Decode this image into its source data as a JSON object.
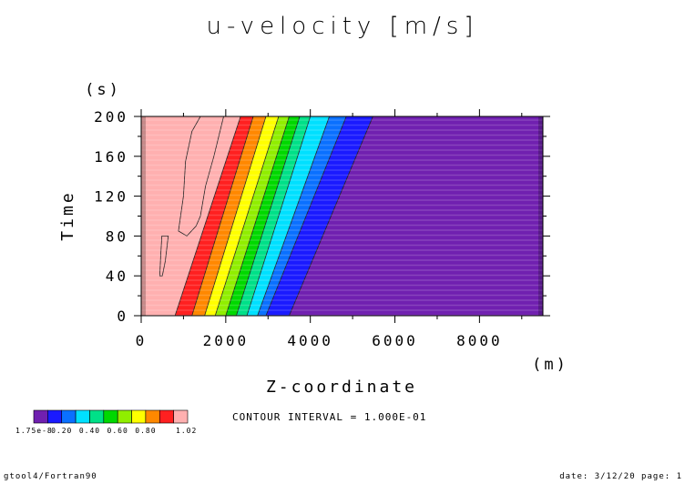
{
  "chart_data": {
    "type": "contour",
    "title": "u-velocity [m/s]",
    "xlabel": "Z-coordinate",
    "xunit": "(m)",
    "ylabel": "Time",
    "yunit": "(s)",
    "xlim": [
      0,
      9500
    ],
    "ylim": [
      0,
      200
    ],
    "xticks": [
      "0",
      "2000",
      "4000",
      "6000",
      "8000"
    ],
    "yticks": [
      "0",
      "40",
      "80",
      "120",
      "160",
      "200"
    ],
    "contour_interval_text": "CONTOUR INTERVAL = 1.000E-01",
    "contour_levels": [
      0.1,
      0.2,
      0.3,
      0.4,
      0.5,
      0.6,
      0.7,
      0.8,
      0.9,
      1.0
    ],
    "contour_lines": [
      {
        "level": 0.1,
        "z_at_t0": 3500,
        "z_at_t200": 5480
      },
      {
        "level": 0.2,
        "z_at_t0": 2950,
        "z_at_t200": 4850
      },
      {
        "level": 0.3,
        "z_at_t0": 2750,
        "z_at_t200": 4450
      },
      {
        "level": 0.4,
        "z_at_t0": 2500,
        "z_at_t200": 4000
      },
      {
        "level": 0.5,
        "z_at_t0": 2250,
        "z_at_t200": 3750
      },
      {
        "level": 0.6,
        "z_at_t0": 2000,
        "z_at_t200": 3500
      },
      {
        "level": 0.7,
        "z_at_t0": 1750,
        "z_at_t200": 3250
      },
      {
        "level": 0.8,
        "z_at_t0": 1500,
        "z_at_t200": 2950
      },
      {
        "level": 0.9,
        "z_at_t0": 1200,
        "z_at_t200": 2650
      },
      {
        "level": 1.0,
        "z_at_t0": 800,
        "z_at_t200": 2350
      }
    ],
    "over_one_regions": [
      [
        [
          1400,
          200
        ],
        [
          1950,
          200
        ],
        [
          1720,
          160
        ],
        [
          1520,
          130
        ],
        [
          1400,
          100
        ],
        [
          1300,
          90
        ],
        [
          1080,
          80
        ],
        [
          880,
          85
        ],
        [
          1000,
          120
        ],
        [
          1050,
          155
        ],
        [
          1200,
          185
        ]
      ],
      [
        [
          490,
          80
        ],
        [
          640,
          80
        ],
        [
          570,
          55
        ],
        [
          500,
          40
        ],
        [
          440,
          40
        ],
        [
          460,
          60
        ]
      ]
    ],
    "colorbar": {
      "colors": [
        "#7020b0",
        "#1a1aff",
        "#0a70ff",
        "#00e0ff",
        "#00e088",
        "#00d800",
        "#90ee00",
        "#ffff00",
        "#ff8800",
        "#ff2020",
        "#ffb0b0"
      ],
      "min_label": "1.75e-8",
      "tick_labels": [
        "0.20",
        "0.40",
        "0.60",
        "0.80"
      ],
      "max_label": "1.02"
    }
  },
  "footer": {
    "left": "gtool4/Fortran90",
    "right": "date: 3/12/20 page: 1"
  }
}
